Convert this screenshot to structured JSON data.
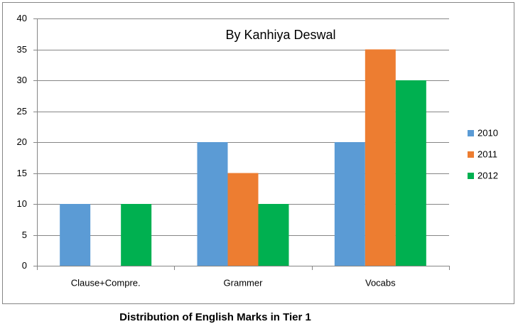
{
  "chart_data": {
    "type": "bar",
    "title": "Distribution of English Marks in Tier 1",
    "annotation": "By Kanhiya Deswal",
    "categories": [
      "Clause+Compre.",
      "Grammer",
      "Vocabs"
    ],
    "series": [
      {
        "name": "2010",
        "color": "#5b9bd5",
        "values": [
          10,
          20,
          20
        ]
      },
      {
        "name": "2011",
        "color": "#ed7d31",
        "values": [
          0,
          15,
          35
        ]
      },
      {
        "name": "2012",
        "color": "#00b050",
        "values": [
          10,
          10,
          30
        ]
      }
    ],
    "ylim": [
      0,
      40
    ],
    "yticks": [
      0,
      5,
      10,
      15,
      20,
      25,
      30,
      35,
      40
    ],
    "grid": true,
    "legend": "right"
  }
}
